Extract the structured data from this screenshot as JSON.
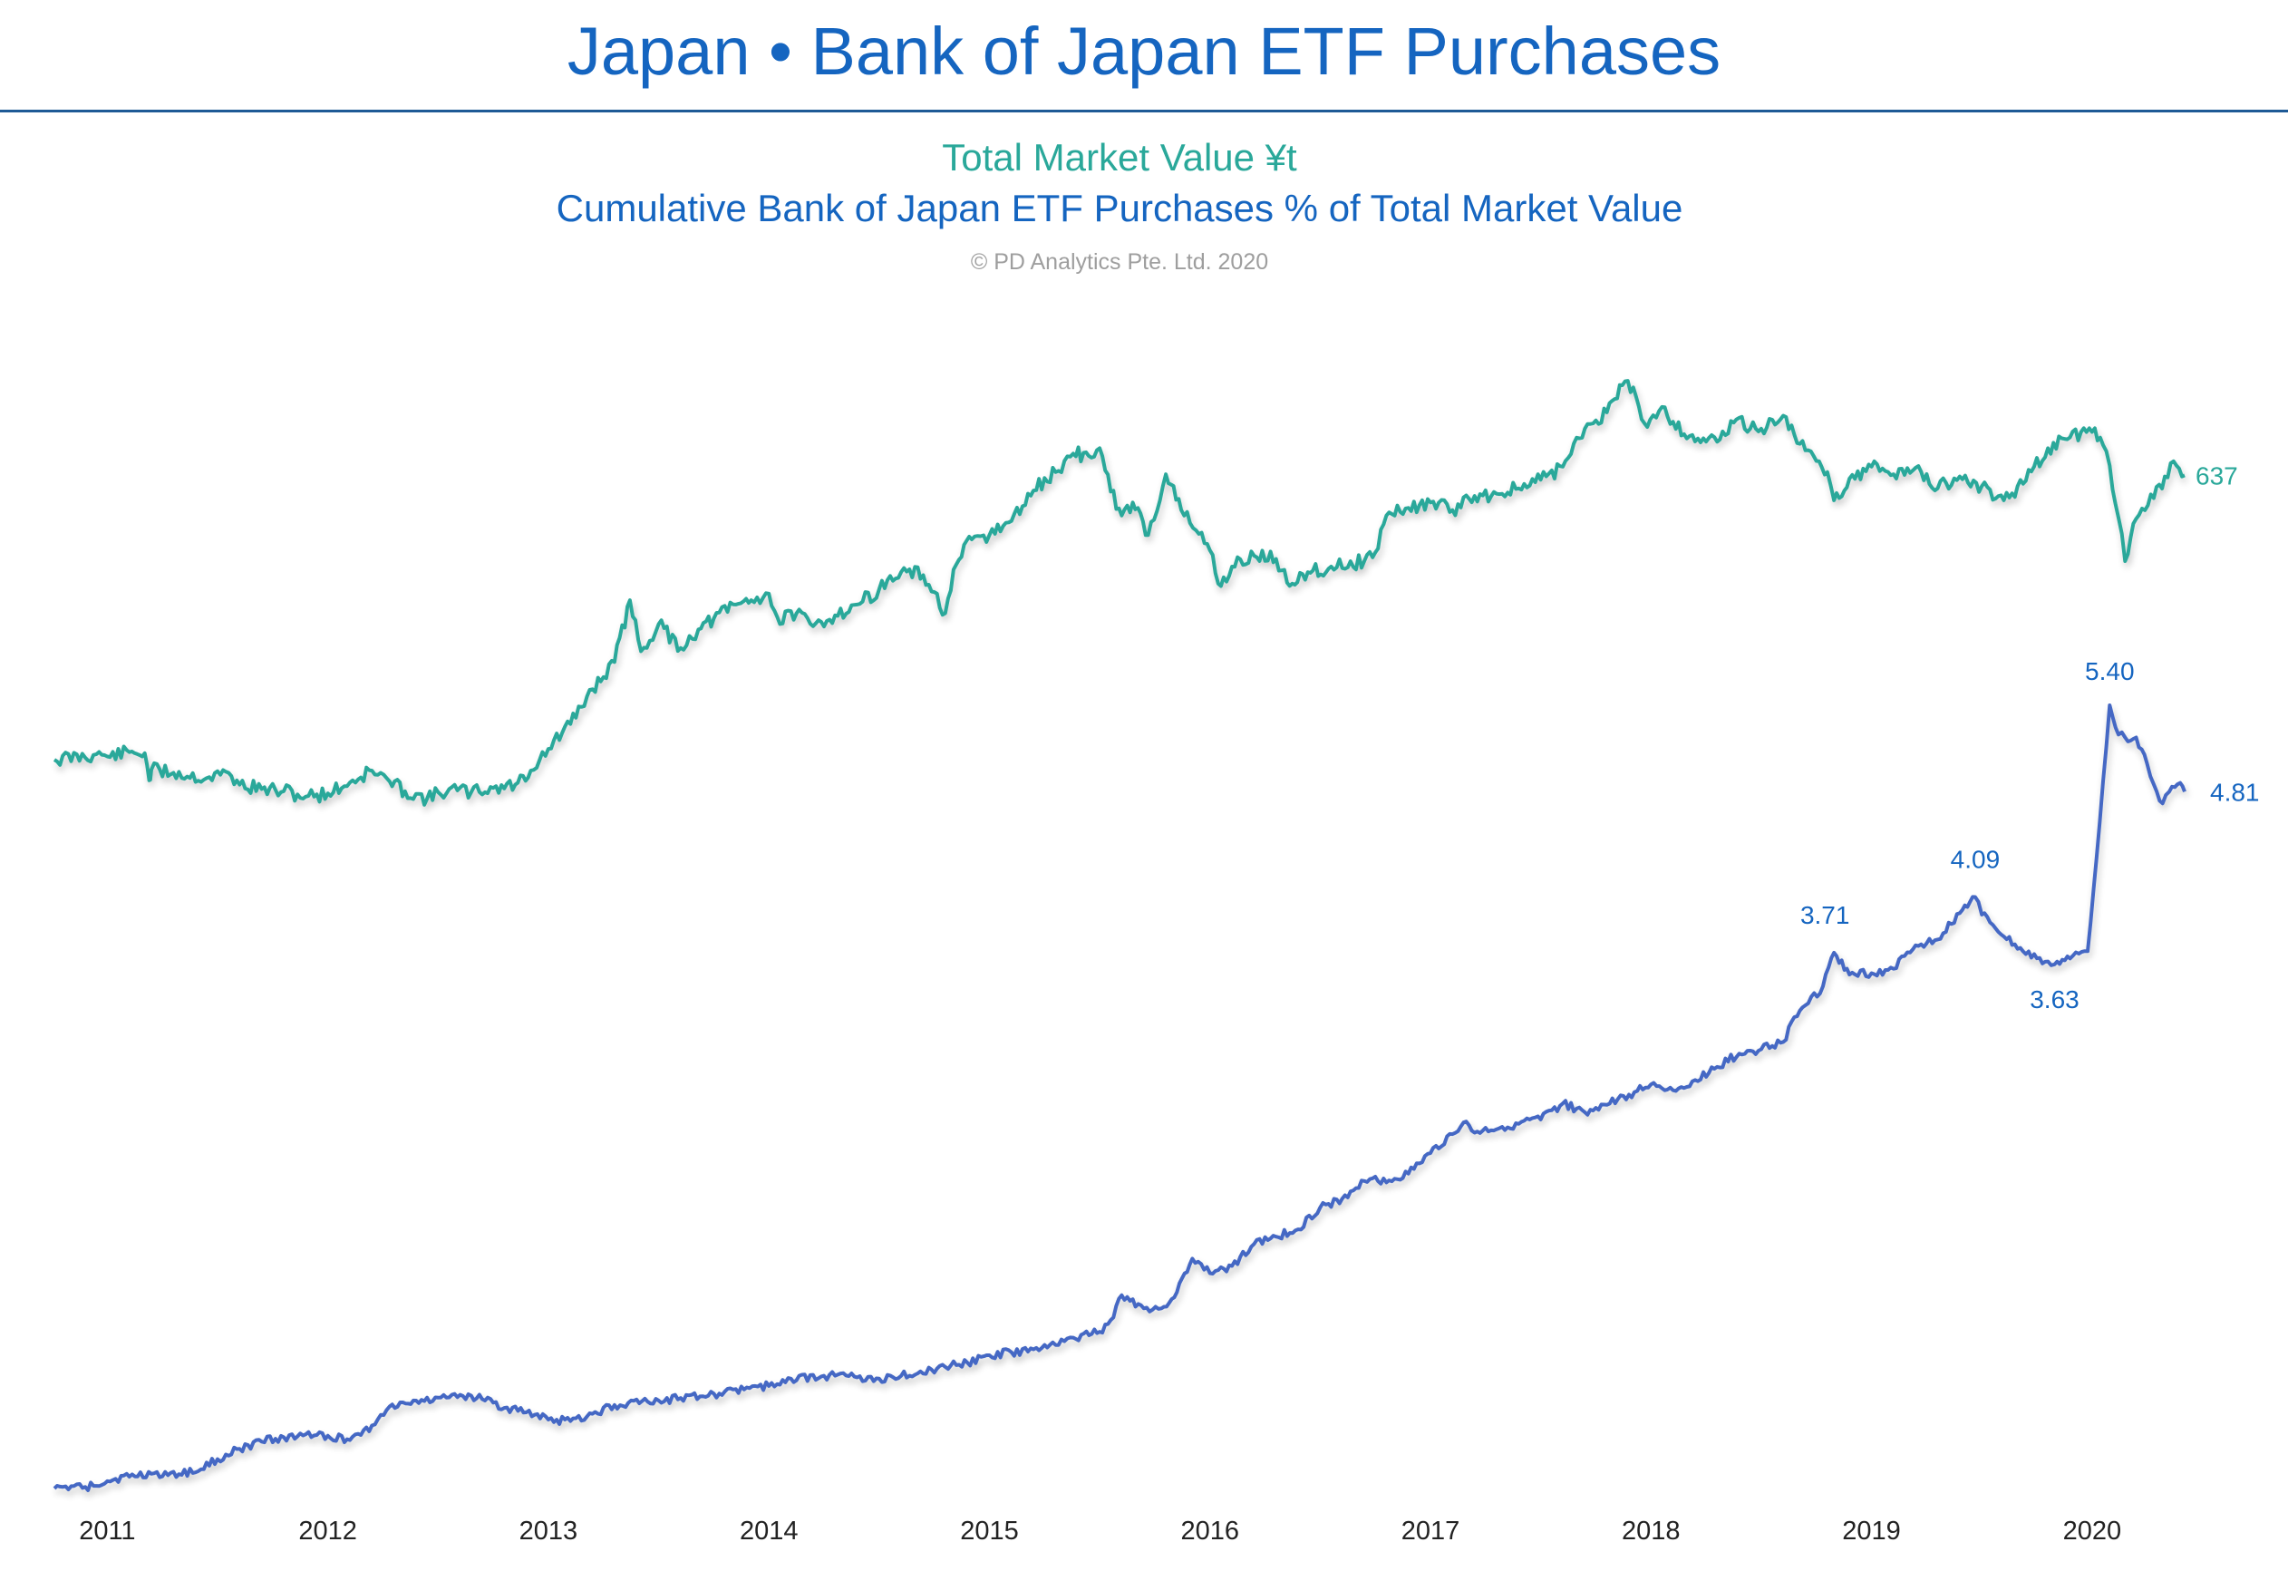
{
  "header": {
    "title": "Japan • Bank of Japan ETF Purchases",
    "subtitle_1": "Total Market Value ¥t",
    "subtitle_2": "Cumulative Bank of Japan ETF Purchases % of Total Market Value",
    "copyright": "© PD Analytics Pte. Ltd. 2020"
  },
  "colors": {
    "market_value": "#2aa89a",
    "etf_share": "#4568c4",
    "label_blue": "#1565c0"
  },
  "chart_data": {
    "type": "line",
    "x_ticks": [
      "2011",
      "2012",
      "2013",
      "2014",
      "2015",
      "2016",
      "2017",
      "2018",
      "2019",
      "2020"
    ],
    "x_range": [
      2010.76,
      2020.42
    ],
    "grid": false,
    "legend": "none",
    "series": [
      {
        "name": "Total Market Value ¥t",
        "axis": "left",
        "end_label": "637",
        "points": [
          [
            2010.76,
            375
          ],
          [
            2010.95,
            380
          ],
          [
            2011.0,
            378
          ],
          [
            2011.1,
            382
          ],
          [
            2011.17,
            381
          ],
          [
            2011.19,
            356
          ],
          [
            2011.2,
            366
          ],
          [
            2011.3,
            363
          ],
          [
            2011.45,
            358
          ],
          [
            2011.55,
            363
          ],
          [
            2011.6,
            352
          ],
          [
            2011.7,
            348
          ],
          [
            2011.8,
            346
          ],
          [
            2011.9,
            341
          ],
          [
            2012.0,
            344
          ],
          [
            2012.1,
            354
          ],
          [
            2012.2,
            365
          ],
          [
            2012.28,
            355
          ],
          [
            2012.35,
            346
          ],
          [
            2012.45,
            339
          ],
          [
            2012.55,
            348
          ],
          [
            2012.65,
            345
          ],
          [
            2012.75,
            349
          ],
          [
            2012.85,
            352
          ],
          [
            2012.92,
            365
          ],
          [
            2013.0,
            385
          ],
          [
            2013.1,
            408
          ],
          [
            2013.2,
            440
          ],
          [
            2013.3,
            465
          ],
          [
            2013.37,
            522
          ],
          [
            2013.42,
            475
          ],
          [
            2013.5,
            500
          ],
          [
            2013.6,
            478
          ],
          [
            2013.68,
            495
          ],
          [
            2013.75,
            505
          ],
          [
            2013.85,
            518
          ],
          [
            2013.92,
            522
          ],
          [
            2014.0,
            528
          ],
          [
            2014.05,
            500
          ],
          [
            2014.1,
            512
          ],
          [
            2014.2,
            498
          ],
          [
            2014.3,
            508
          ],
          [
            2014.4,
            518
          ],
          [
            2014.5,
            532
          ],
          [
            2014.6,
            548
          ],
          [
            2014.7,
            545
          ],
          [
            2014.8,
            510
          ],
          [
            2014.85,
            555
          ],
          [
            2014.92,
            578
          ],
          [
            2015.0,
            582
          ],
          [
            2015.1,
            595
          ],
          [
            2015.2,
            623
          ],
          [
            2015.3,
            640
          ],
          [
            2015.38,
            657
          ],
          [
            2015.45,
            655
          ],
          [
            2015.5,
            662
          ],
          [
            2015.55,
            622
          ],
          [
            2015.6,
            600
          ],
          [
            2015.65,
            612
          ],
          [
            2015.72,
            582
          ],
          [
            2015.8,
            638
          ],
          [
            2015.87,
            605
          ],
          [
            2015.95,
            583
          ],
          [
            2016.0,
            568
          ],
          [
            2016.05,
            535
          ],
          [
            2016.1,
            553
          ],
          [
            2016.2,
            563
          ],
          [
            2016.3,
            560
          ],
          [
            2016.35,
            538
          ],
          [
            2016.42,
            546
          ],
          [
            2016.55,
            553
          ],
          [
            2016.7,
            558
          ],
          [
            2016.75,
            566
          ],
          [
            2016.8,
            600
          ],
          [
            2016.9,
            607
          ],
          [
            2017.0,
            612
          ],
          [
            2017.1,
            605
          ],
          [
            2017.2,
            618
          ],
          [
            2017.3,
            620
          ],
          [
            2017.4,
            625
          ],
          [
            2017.5,
            633
          ],
          [
            2017.6,
            645
          ],
          [
            2017.7,
            680
          ],
          [
            2017.8,
            695
          ],
          [
            2017.87,
            720
          ],
          [
            2017.92,
            718
          ],
          [
            2017.97,
            685
          ],
          [
            2018.05,
            700
          ],
          [
            2018.15,
            675
          ],
          [
            2018.3,
            668
          ],
          [
            2018.4,
            690
          ],
          [
            2018.45,
            680
          ],
          [
            2018.5,
            680
          ],
          [
            2018.6,
            692
          ],
          [
            2018.7,
            660
          ],
          [
            2018.8,
            640
          ],
          [
            2018.83,
            614
          ],
          [
            2018.9,
            634
          ],
          [
            2019.0,
            645
          ],
          [
            2019.1,
            638
          ],
          [
            2019.2,
            644
          ],
          [
            2019.3,
            625
          ],
          [
            2019.4,
            636
          ],
          [
            2019.5,
            627
          ],
          [
            2019.6,
            614
          ],
          [
            2019.7,
            632
          ],
          [
            2019.8,
            662
          ],
          [
            2019.9,
            672
          ],
          [
            2020.0,
            677
          ],
          [
            2020.05,
            665
          ],
          [
            2020.08,
            646
          ],
          [
            2020.12,
            598
          ],
          [
            2020.15,
            558
          ],
          [
            2020.2,
            597
          ],
          [
            2020.28,
            616
          ],
          [
            2020.33,
            636
          ],
          [
            2020.37,
            650
          ],
          [
            2020.42,
            637
          ]
        ]
      },
      {
        "name": "Cumulative Bank of Japan ETF Purchases % of Total Market Value",
        "axis": "right",
        "end_label": "4.81",
        "annotations": [
          {
            "x": 2018.83,
            "y": 3.71,
            "label": "3.71"
          },
          {
            "x": 2019.47,
            "y": 4.09,
            "label": "4.09"
          },
          {
            "x": 2019.83,
            "y": 3.63,
            "label": "3.63"
          },
          {
            "x": 2020.08,
            "y": 5.4,
            "label": "5.40"
          },
          {
            "x": 2020.42,
            "y": 4.81,
            "label": "4.81"
          }
        ],
        "points": [
          [
            2010.76,
            0.05
          ],
          [
            2010.9,
            0.06
          ],
          [
            2011.0,
            0.1
          ],
          [
            2011.1,
            0.13
          ],
          [
            2011.2,
            0.15
          ],
          [
            2011.4,
            0.16
          ],
          [
            2011.5,
            0.25
          ],
          [
            2011.6,
            0.32
          ],
          [
            2011.7,
            0.37
          ],
          [
            2011.8,
            0.4
          ],
          [
            2011.9,
            0.42
          ],
          [
            2012.0,
            0.41
          ],
          [
            2012.1,
            0.38
          ],
          [
            2012.2,
            0.48
          ],
          [
            2012.28,
            0.61
          ],
          [
            2012.4,
            0.65
          ],
          [
            2012.5,
            0.67
          ],
          [
            2012.6,
            0.69
          ],
          [
            2012.7,
            0.66
          ],
          [
            2012.8,
            0.6
          ],
          [
            2012.9,
            0.57
          ],
          [
            2013.0,
            0.52
          ],
          [
            2013.1,
            0.51
          ],
          [
            2013.2,
            0.56
          ],
          [
            2013.3,
            0.62
          ],
          [
            2013.5,
            0.65
          ],
          [
            2013.7,
            0.68
          ],
          [
            2013.9,
            0.74
          ],
          [
            2014.0,
            0.75
          ],
          [
            2014.1,
            0.8
          ],
          [
            2014.3,
            0.82
          ],
          [
            2014.5,
            0.8
          ],
          [
            2014.6,
            0.82
          ],
          [
            2014.8,
            0.88
          ],
          [
            2014.9,
            0.91
          ],
          [
            2015.0,
            0.96
          ],
          [
            2015.1,
            0.98
          ],
          [
            2015.2,
            1.0
          ],
          [
            2015.3,
            1.03
          ],
          [
            2015.38,
            1.08
          ],
          [
            2015.5,
            1.12
          ],
          [
            2015.55,
            1.2
          ],
          [
            2015.6,
            1.37
          ],
          [
            2015.7,
            1.28
          ],
          [
            2015.78,
            1.28
          ],
          [
            2015.85,
            1.39
          ],
          [
            2015.92,
            1.62
          ],
          [
            2016.0,
            1.52
          ],
          [
            2016.1,
            1.57
          ],
          [
            2016.2,
            1.72
          ],
          [
            2016.3,
            1.77
          ],
          [
            2016.4,
            1.82
          ],
          [
            2016.5,
            1.97
          ],
          [
            2016.6,
            2.03
          ],
          [
            2016.7,
            2.15
          ],
          [
            2016.75,
            2.18
          ],
          [
            2016.8,
            2.14
          ],
          [
            2016.9,
            2.2
          ],
          [
            2016.95,
            2.27
          ],
          [
            2017.0,
            2.34
          ],
          [
            2017.1,
            2.47
          ],
          [
            2017.15,
            2.55
          ],
          [
            2017.2,
            2.48
          ],
          [
            2017.4,
            2.54
          ],
          [
            2017.5,
            2.57
          ],
          [
            2017.6,
            2.68
          ],
          [
            2017.7,
            2.62
          ],
          [
            2017.75,
            2.65
          ],
          [
            2017.8,
            2.67
          ],
          [
            2017.9,
            2.74
          ],
          [
            2018.0,
            2.81
          ],
          [
            2018.1,
            2.77
          ],
          [
            2018.2,
            2.84
          ],
          [
            2018.3,
            2.93
          ],
          [
            2018.4,
            3.02
          ],
          [
            2018.5,
            3.05
          ],
          [
            2018.6,
            3.1
          ],
          [
            2018.65,
            3.27
          ],
          [
            2018.7,
            3.35
          ],
          [
            2018.78,
            3.48
          ],
          [
            2018.83,
            3.71
          ],
          [
            2018.9,
            3.56
          ],
          [
            2019.0,
            3.57
          ],
          [
            2019.1,
            3.6
          ],
          [
            2019.2,
            3.76
          ],
          [
            2019.3,
            3.8
          ],
          [
            2019.4,
            3.98
          ],
          [
            2019.47,
            4.09
          ],
          [
            2019.5,
            3.97
          ],
          [
            2019.55,
            3.9
          ],
          [
            2019.6,
            3.82
          ],
          [
            2019.7,
            3.7
          ],
          [
            2019.8,
            3.65
          ],
          [
            2019.83,
            3.63
          ],
          [
            2019.9,
            3.67
          ],
          [
            2019.98,
            3.72
          ],
          [
            2020.02,
            4.35
          ],
          [
            2020.05,
            4.88
          ],
          [
            2020.08,
            5.4
          ],
          [
            2020.12,
            5.2
          ],
          [
            2020.15,
            5.18
          ],
          [
            2020.2,
            5.18
          ],
          [
            2020.25,
            5.0
          ],
          [
            2020.28,
            4.86
          ],
          [
            2020.32,
            4.73
          ],
          [
            2020.35,
            4.81
          ],
          [
            2020.4,
            4.87
          ],
          [
            2020.42,
            4.81
          ]
        ]
      }
    ]
  }
}
